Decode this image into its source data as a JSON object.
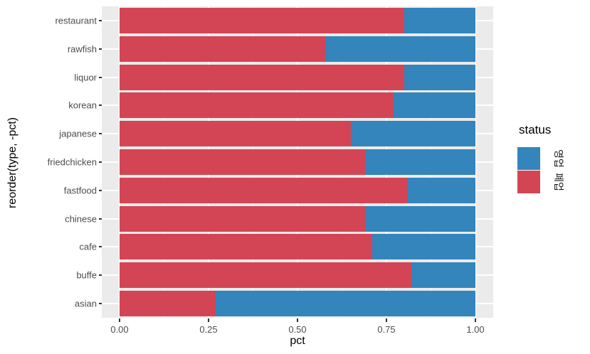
{
  "chart_data": {
    "type": "bar",
    "orientation": "horizontal",
    "stacked": true,
    "normalized_fill": true,
    "title": "",
    "xlabel": "pct",
    "ylabel": "reorder(type, -pct)",
    "xlim": [
      0,
      1
    ],
    "grid": true,
    "categories": [
      "restaurant",
      "rawfish",
      "liquor",
      "korean",
      "japanese",
      "friedchicken",
      "fastfood",
      "chinese",
      "cafe",
      "buffe",
      "asian"
    ],
    "series": [
      {
        "name": "폐업",
        "slug": "closed",
        "color": "#D34555",
        "values": [
          0.8,
          0.58,
          0.8,
          0.77,
          0.65,
          0.69,
          0.81,
          0.69,
          0.71,
          0.82,
          0.27
        ]
      },
      {
        "name": "영업",
        "slug": "open",
        "color": "#3385BC",
        "values": [
          0.2,
          0.42,
          0.2,
          0.23,
          0.35,
          0.31,
          0.19,
          0.31,
          0.29,
          0.18,
          0.73
        ]
      }
    ],
    "x_ticks": [
      {
        "value": 0.0,
        "label": "0.00"
      },
      {
        "value": 0.25,
        "label": "0.25"
      },
      {
        "value": 0.5,
        "label": "0.50"
      },
      {
        "value": 0.75,
        "label": "0.75"
      },
      {
        "value": 1.0,
        "label": "1.00"
      }
    ],
    "x_minor_ticks": [
      0.125,
      0.375,
      0.625,
      0.875
    ],
    "legend": {
      "title": "status",
      "position": "right",
      "labels_rotated_90": true,
      "entries": [
        {
          "label": "영업",
          "slug": "open",
          "color": "#3385BC"
        },
        {
          "label": "폐업",
          "slug": "closed",
          "color": "#D34555"
        }
      ]
    },
    "colors": {
      "panel_background": "#EBEBEB",
      "gridline": "#FFFFFF",
      "axis_text": "#4D4D4D",
      "tick_mark": "#333333",
      "axis_title": "#000000"
    }
  }
}
